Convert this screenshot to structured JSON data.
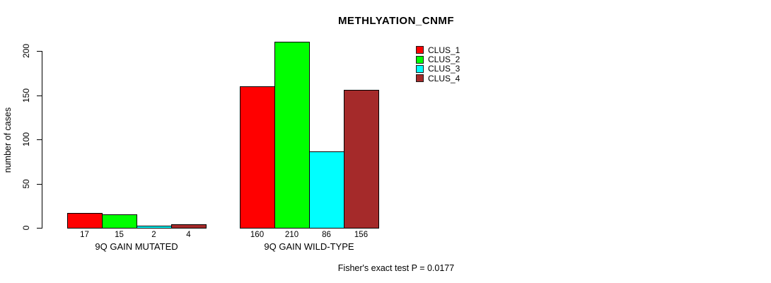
{
  "chart_data": {
    "type": "bar",
    "title": "METHLYATION_CNMF",
    "ylabel": "number of cases",
    "xlabel": "",
    "ylim": [
      0,
      200
    ],
    "yticks": [
      0,
      50,
      100,
      150,
      200
    ],
    "grid": false,
    "legend_position": "top-right",
    "categories": [
      "9Q GAIN MUTATED",
      "9Q GAIN WILD-TYPE"
    ],
    "series": [
      {
        "name": "CLUS_1",
        "color": "#FF0000",
        "values": [
          17,
          160
        ]
      },
      {
        "name": "CLUS_2",
        "color": "#00FF00",
        "values": [
          15,
          210
        ]
      },
      {
        "name": "CLUS_3",
        "color": "#00FFFF",
        "values": [
          2,
          86
        ]
      },
      {
        "name": "CLUS_4",
        "color": "#A52A2A",
        "values": [
          4,
          156
        ]
      }
    ],
    "bar_value_labels": [
      [
        "17",
        "15",
        "2",
        "4"
      ],
      [
        "160",
        "210",
        "86",
        "156"
      ]
    ],
    "annotation": "Fisher's exact test P = 0.0177"
  }
}
